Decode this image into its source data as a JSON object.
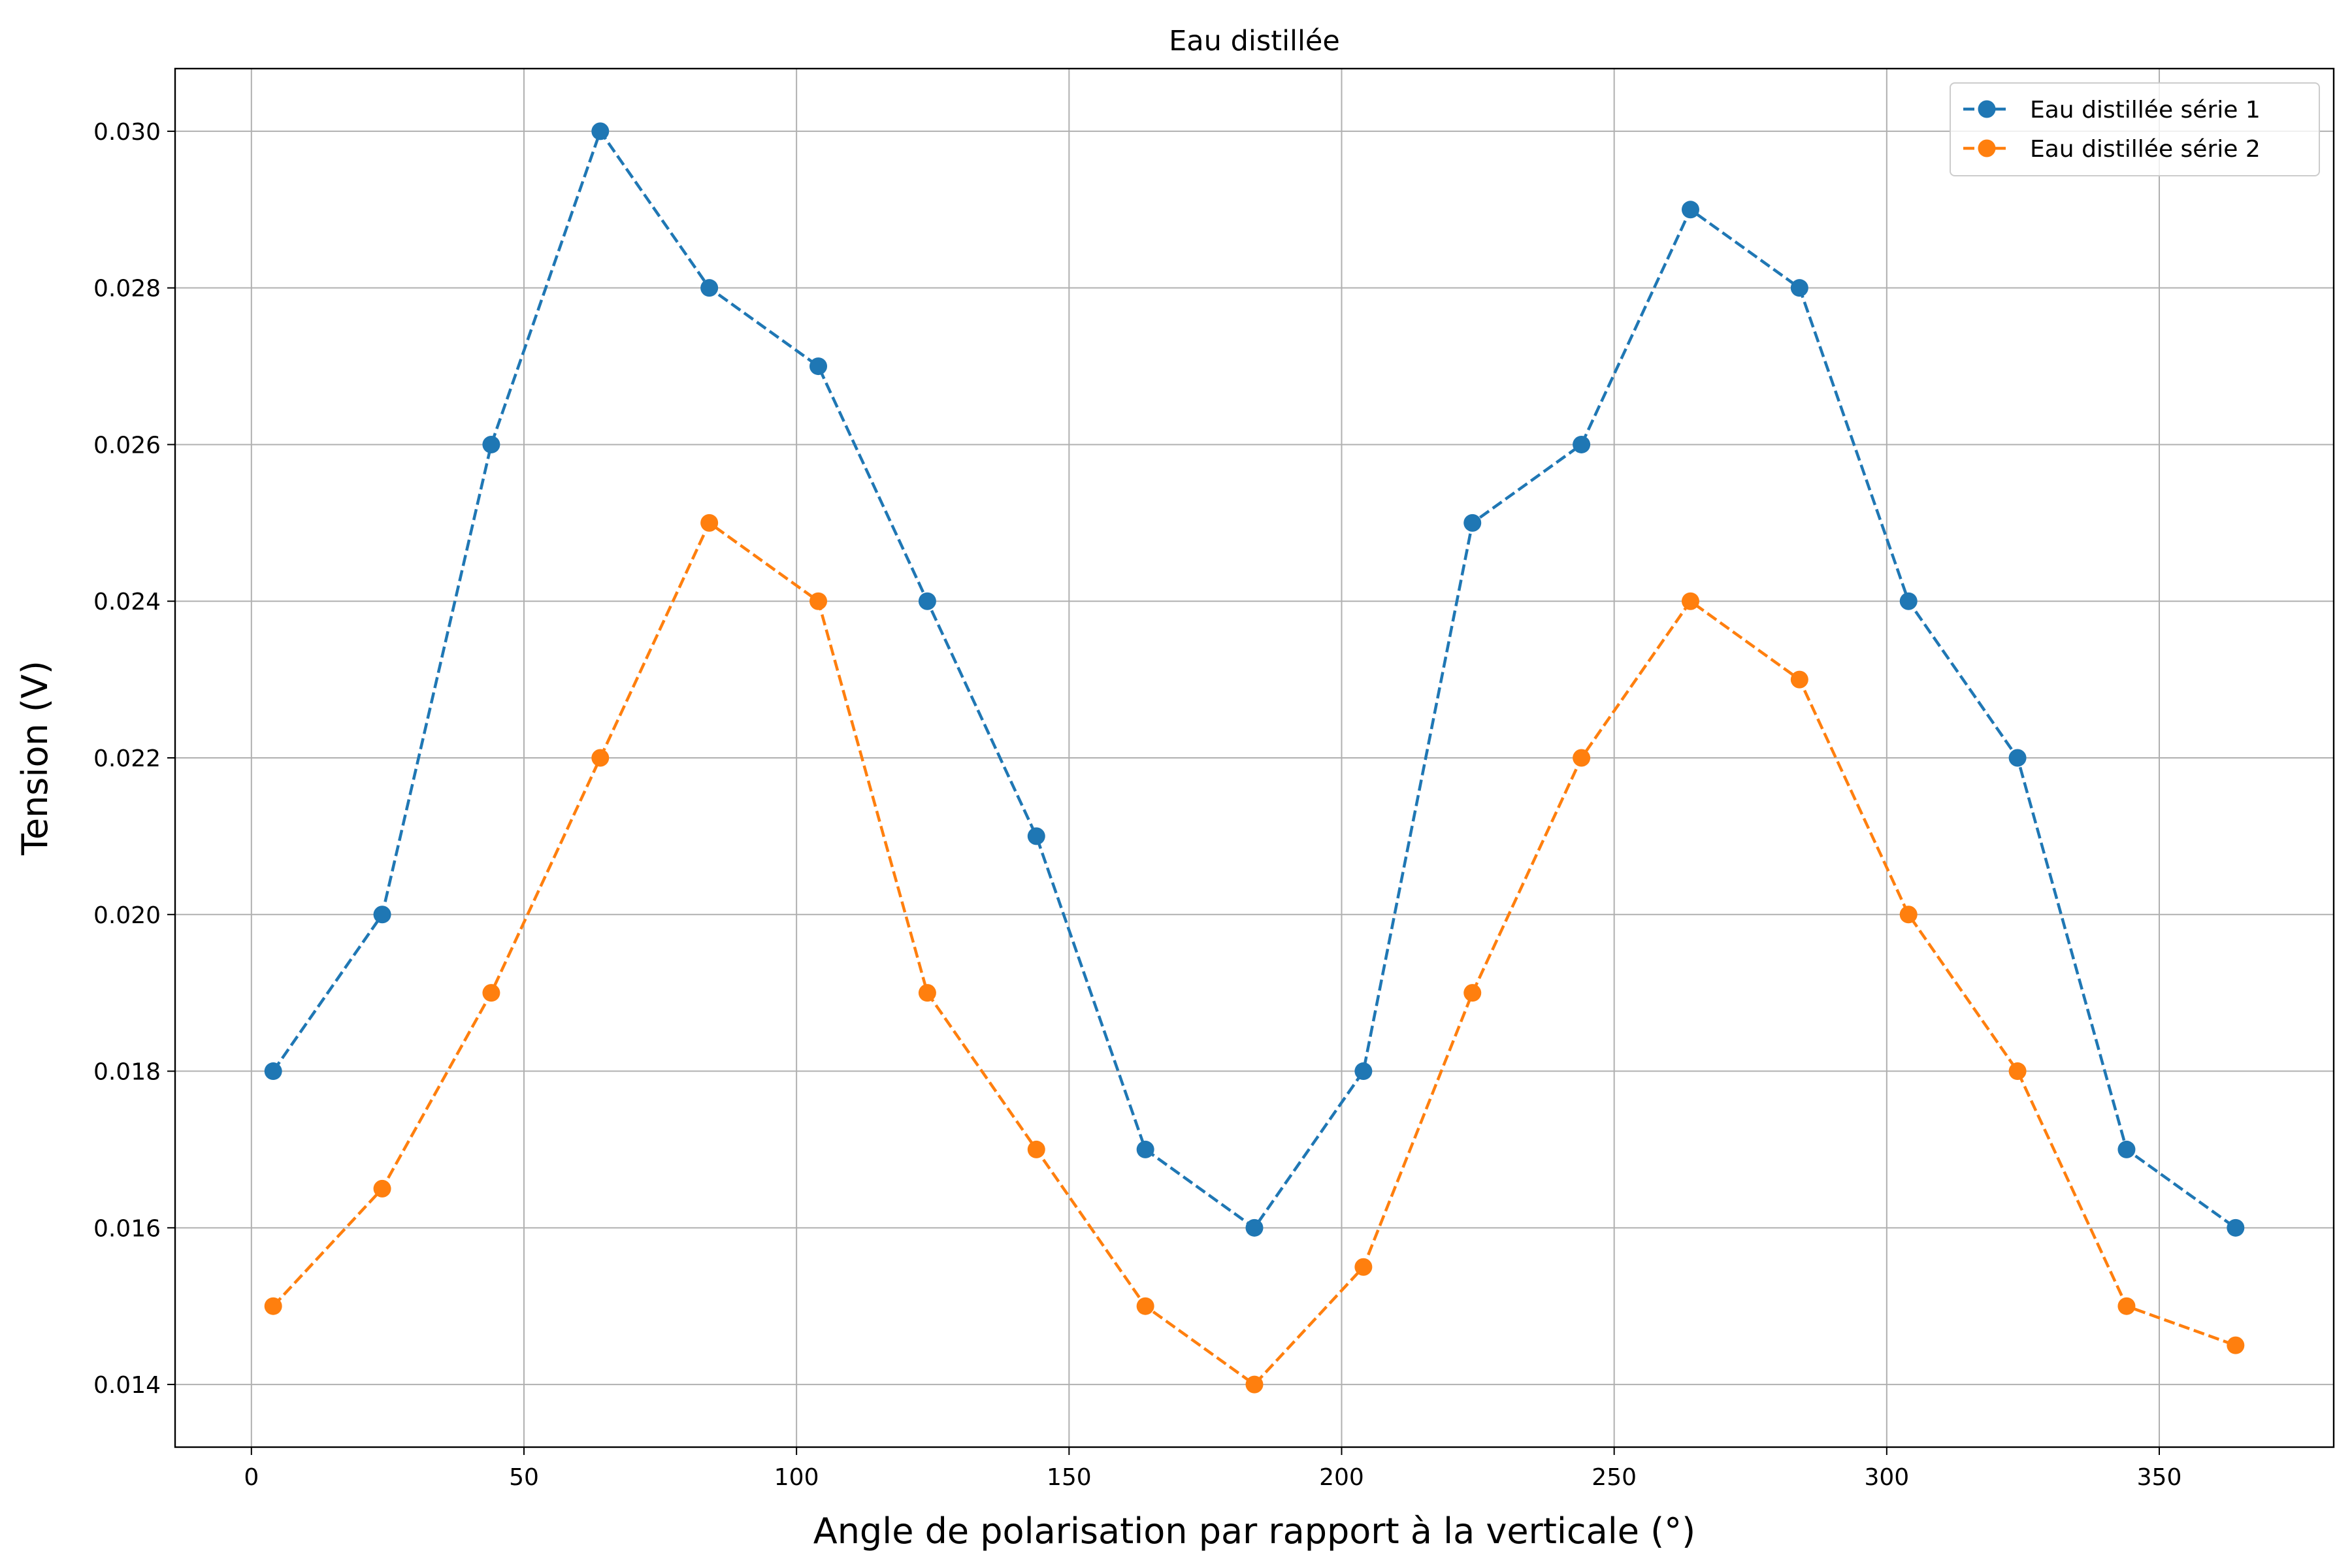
{
  "chart_data": {
    "type": "line",
    "title": "Eau distillée",
    "xlabel": "Angle de polarisation par rapport à la verticale (°)",
    "ylabel": "Tension (V)",
    "x": [
      4,
      24,
      44,
      64,
      84,
      104,
      124,
      144,
      164,
      184,
      204,
      224,
      244,
      264,
      284,
      304,
      324,
      344,
      364
    ],
    "series": [
      {
        "name": "Eau distillée série 1",
        "color": "#1f77b4",
        "values": [
          0.018,
          0.02,
          0.026,
          0.03,
          0.028,
          0.027,
          0.024,
          0.021,
          0.017,
          0.016,
          0.018,
          0.025,
          0.026,
          0.029,
          0.028,
          0.024,
          0.022,
          0.017,
          0.016
        ]
      },
      {
        "name": "Eau distillée série 2",
        "color": "#ff7f0e",
        "values": [
          0.015,
          0.0165,
          0.019,
          0.022,
          0.025,
          0.024,
          0.019,
          0.017,
          0.015,
          0.014,
          0.0155,
          0.019,
          0.022,
          0.024,
          0.023,
          0.02,
          0.018,
          0.015,
          0.0145
        ]
      }
    ],
    "xlim": [
      -14.0,
      382.0
    ],
    "ylim": [
      0.0132,
      0.0308
    ],
    "xticks": [
      0,
      50,
      100,
      150,
      200,
      250,
      300,
      350
    ],
    "xtick_labels": [
      "0",
      "50",
      "100",
      "150",
      "200",
      "250",
      "300",
      "350"
    ],
    "yticks": [
      0.014,
      0.016,
      0.018,
      0.02,
      0.022,
      0.024,
      0.026,
      0.028,
      0.03
    ],
    "ytick_labels": [
      "0.014",
      "0.016",
      "0.018",
      "0.020",
      "0.022",
      "0.024",
      "0.026",
      "0.028",
      "0.030"
    ],
    "grid": true,
    "line_style": "dashed",
    "marker": "circle",
    "legend_position": "top-right"
  }
}
